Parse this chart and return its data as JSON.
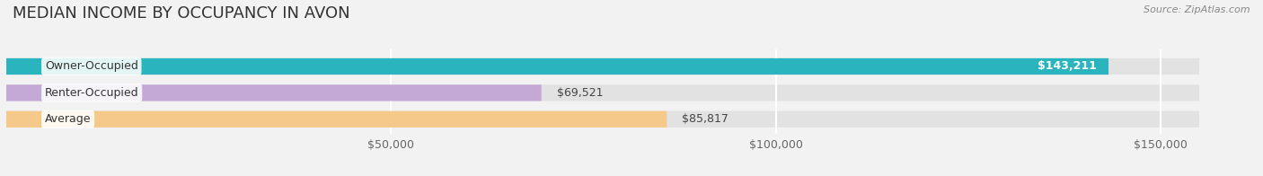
{
  "title": "MEDIAN INCOME BY OCCUPANCY IN AVON",
  "source": "Source: ZipAtlas.com",
  "categories": [
    "Owner-Occupied",
    "Renter-Occupied",
    "Average"
  ],
  "values": [
    143211,
    69521,
    85817
  ],
  "bar_colors": [
    "#2ab5be",
    "#c4a8d5",
    "#f5c98a"
  ],
  "bar_labels": [
    "$143,211",
    "$69,521",
    "$85,817"
  ],
  "label_in_bar": [
    true,
    false,
    false
  ],
  "xlim": [
    0,
    160000
  ],
  "max_display": 155000,
  "xticks": [
    50000,
    100000,
    150000
  ],
  "xtick_labels": [
    "$50,000",
    "$100,000",
    "$150,000"
  ],
  "bg_color": "#f2f2f2",
  "bar_bg_color": "#e2e2e2",
  "title_fontsize": 13,
  "label_fontsize": 9,
  "tick_fontsize": 9,
  "source_fontsize": 8
}
